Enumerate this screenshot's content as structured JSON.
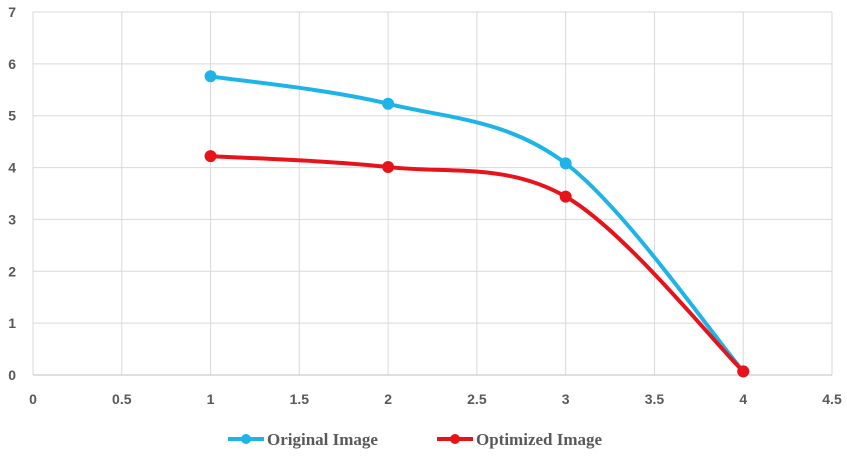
{
  "chart_data": {
    "type": "line",
    "title": "",
    "xlabel": "",
    "ylabel": "",
    "xlim": [
      0,
      4.5
    ],
    "ylim": [
      0,
      7
    ],
    "x_ticks": [
      "0",
      "0.5",
      "1",
      "1.5",
      "2",
      "2.5",
      "3",
      "3.5",
      "4",
      "4.5"
    ],
    "y_ticks": [
      "0",
      "1",
      "2",
      "3",
      "4",
      "5",
      "6",
      "7"
    ],
    "grid": true,
    "smooth": true,
    "legend_position": "bottom",
    "series": [
      {
        "name": "Original Image",
        "color": "#1EB4E8",
        "x": [
          1,
          2,
          3,
          4
        ],
        "y": [
          5.76,
          5.23,
          4.08,
          0.07
        ]
      },
      {
        "name": "Optimized Image",
        "color": "#E6141A",
        "x": [
          1,
          2,
          3,
          4
        ],
        "y": [
          4.22,
          4.01,
          3.44,
          0.07
        ]
      }
    ]
  }
}
